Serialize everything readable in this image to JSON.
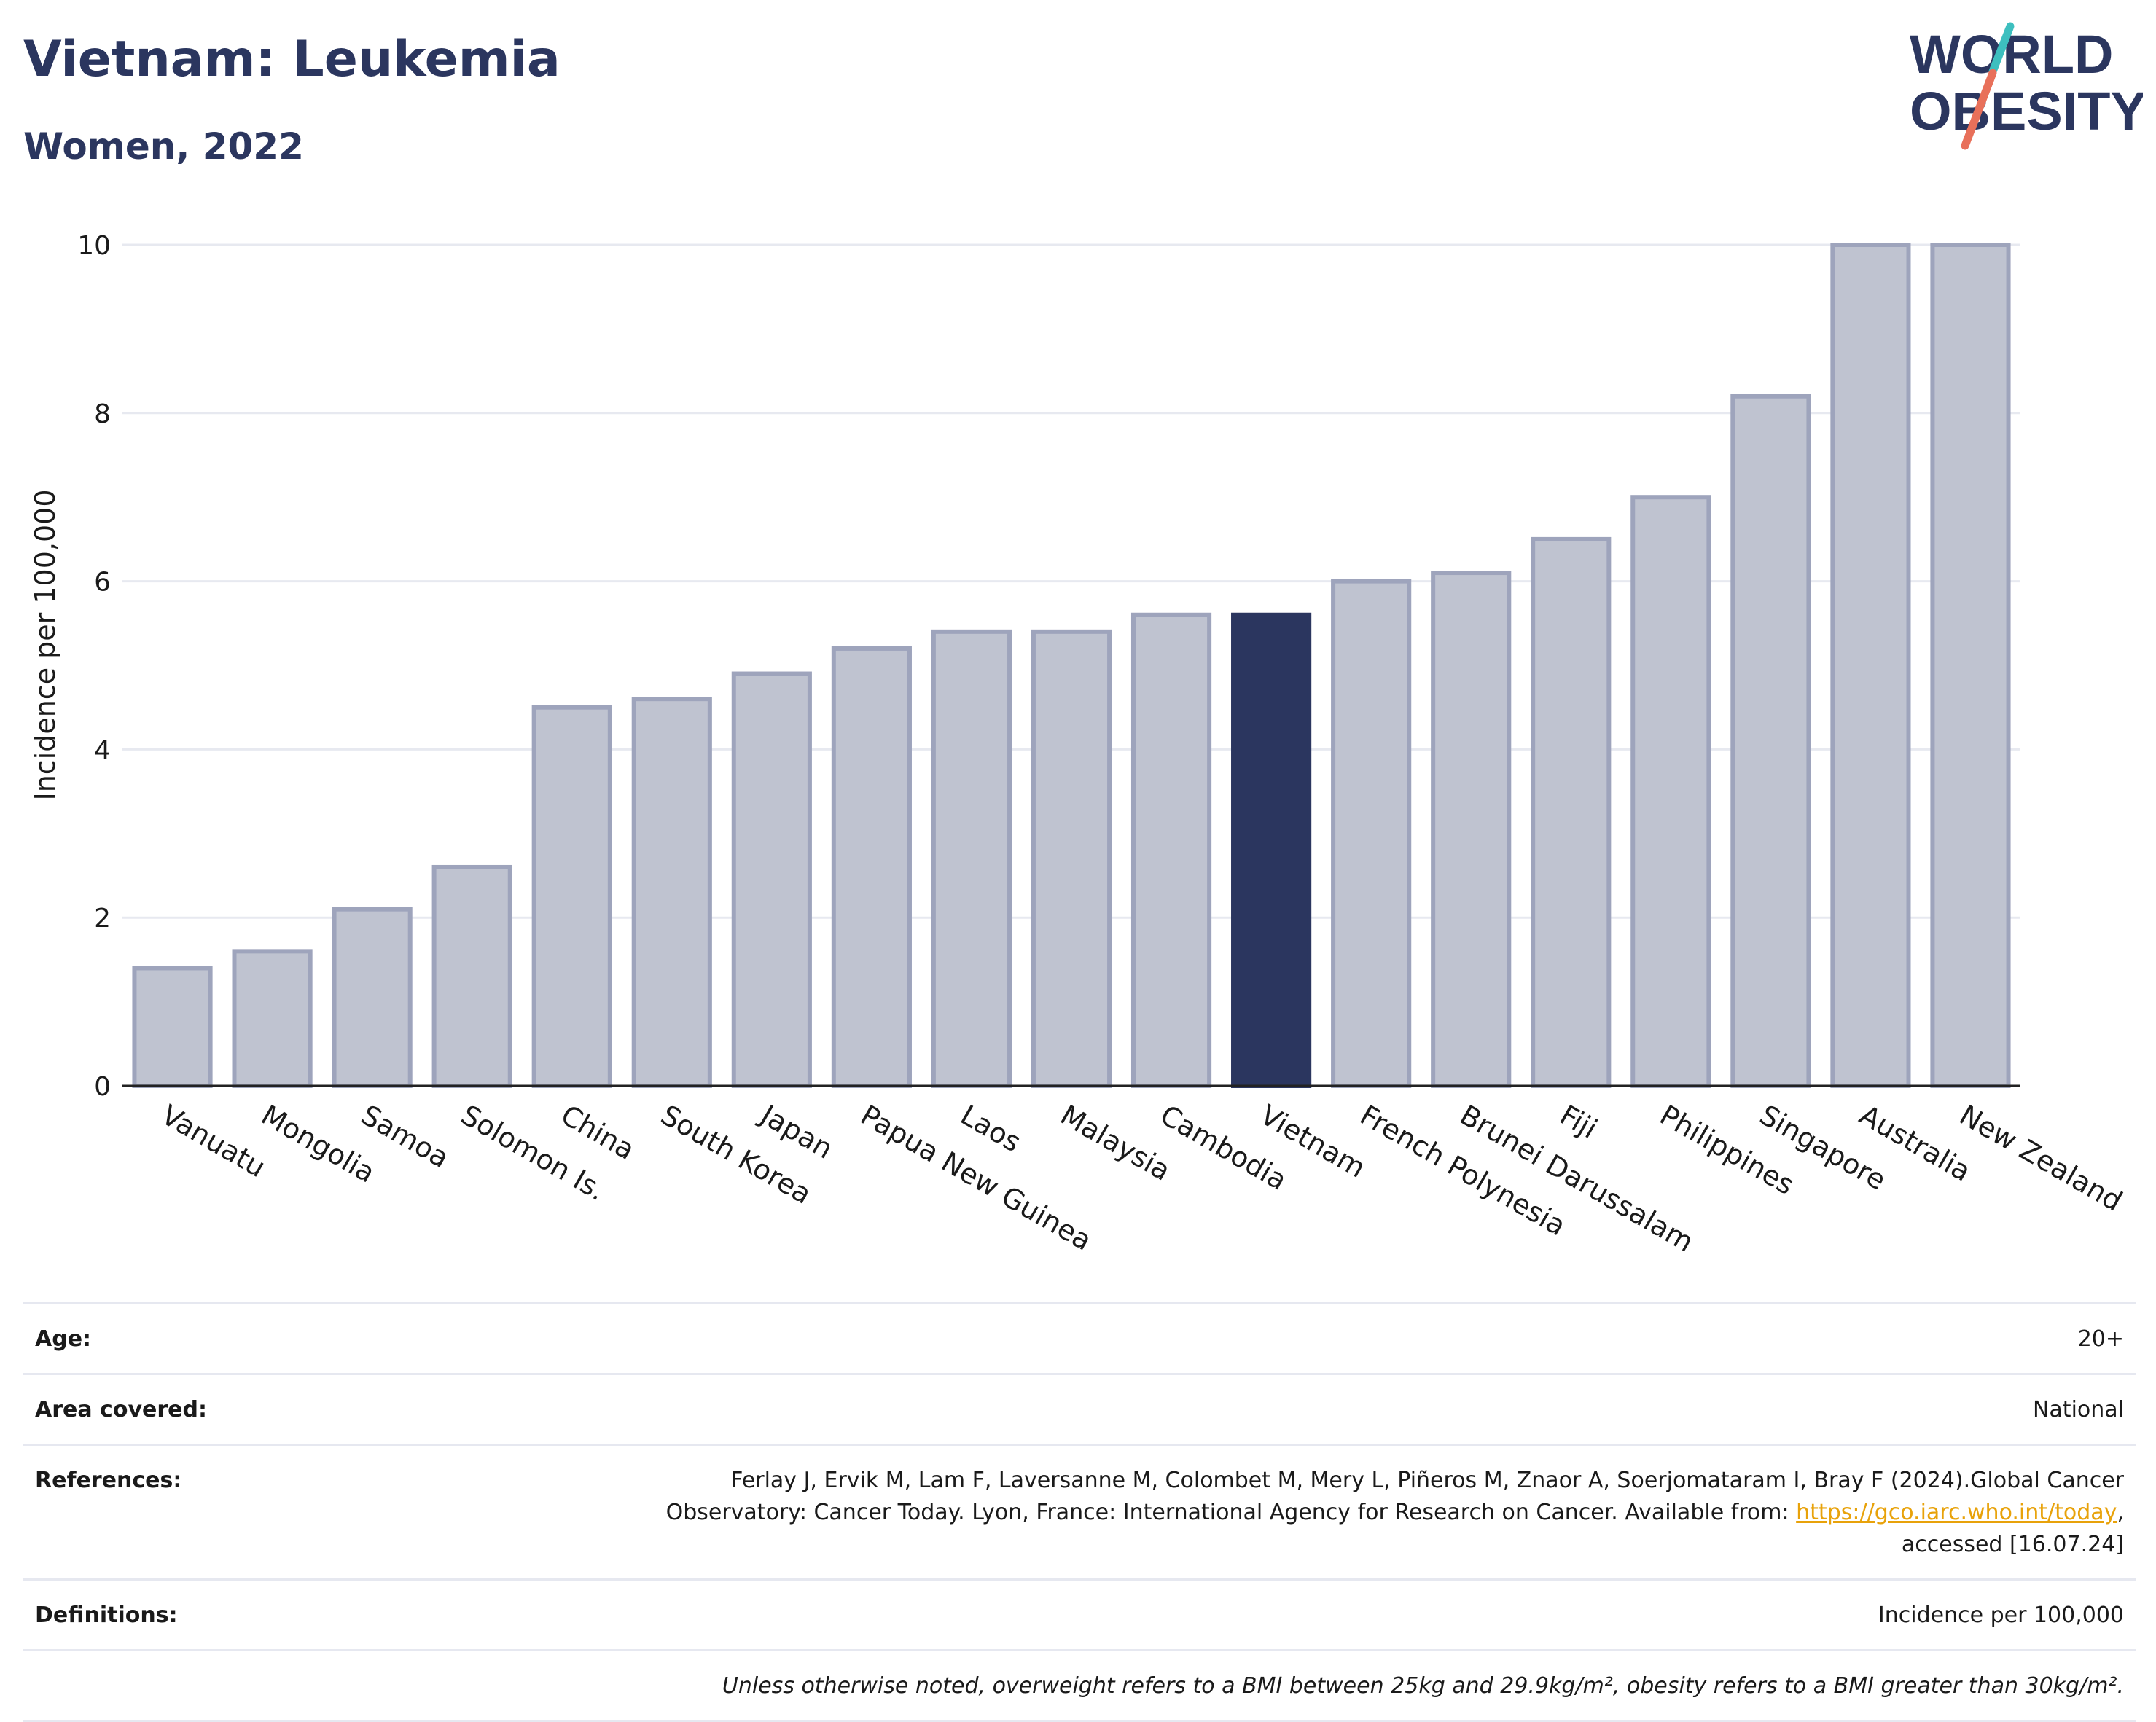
{
  "header": {
    "title": "Vietnam: Leukemia",
    "subtitle": "Women, 2022",
    "logo_line1": "WORLD",
    "logo_line2": "OBESITY"
  },
  "colors": {
    "bar": "#bfc3d0",
    "bar_border": "#9ea4bc",
    "highlight": "#2b365f",
    "grid": "#e7e9f0",
    "axis": "#222222",
    "logo_teal": "#3dbfbf",
    "logo_coral": "#e8705a"
  },
  "chart_data": {
    "type": "bar",
    "title": "",
    "xlabel": "",
    "ylabel": "Incidence per 100,000",
    "ylim": [
      0,
      10
    ],
    "yticks": [
      0,
      2,
      4,
      6,
      8,
      10
    ],
    "grid": true,
    "highlight": "Vietnam",
    "categories": [
      "Vanuatu",
      "Mongolia",
      "Samoa",
      "Solomon Is.",
      "China",
      "South Korea",
      "Japan",
      "Papua New Guinea",
      "Laos",
      "Malaysia",
      "Cambodia",
      "Vietnam",
      "French Polynesia",
      "Brunei Darussalam",
      "Fiji",
      "Philippines",
      "Singapore",
      "Australia",
      "New Zealand"
    ],
    "values": [
      1.4,
      1.6,
      2.1,
      2.6,
      4.5,
      4.6,
      4.9,
      5.2,
      5.4,
      5.4,
      5.6,
      5.6,
      6.0,
      6.1,
      6.5,
      7.0,
      8.2,
      10.0,
      10.0
    ]
  },
  "info": {
    "age_label": "Age:",
    "age_value": "20+",
    "area_label": "Area covered:",
    "area_value": "National",
    "ref_label": "References:",
    "ref_line1": "Ferlay J, Ervik M, Lam F, Laversanne M, Colombet M, Mery L, Piñeros M, Znaor A, Soerjomataram I, Bray F (2024).Global Cancer",
    "ref_line2": "Observatory: Cancer Today. Lyon, France: International Agency for Research on Cancer. Available from: ",
    "ref_link": "https://gco.iarc.who.int/today",
    "ref_line2_end": ",",
    "ref_line3": "accessed [16.07.24]",
    "def_label": "Definitions:",
    "def_value": "Incidence per 100,000",
    "note": "Unless otherwise noted, overweight refers to a BMI between 25kg and 29.9kg/m², obesity refers to a BMI greater than 30kg/m²."
  }
}
